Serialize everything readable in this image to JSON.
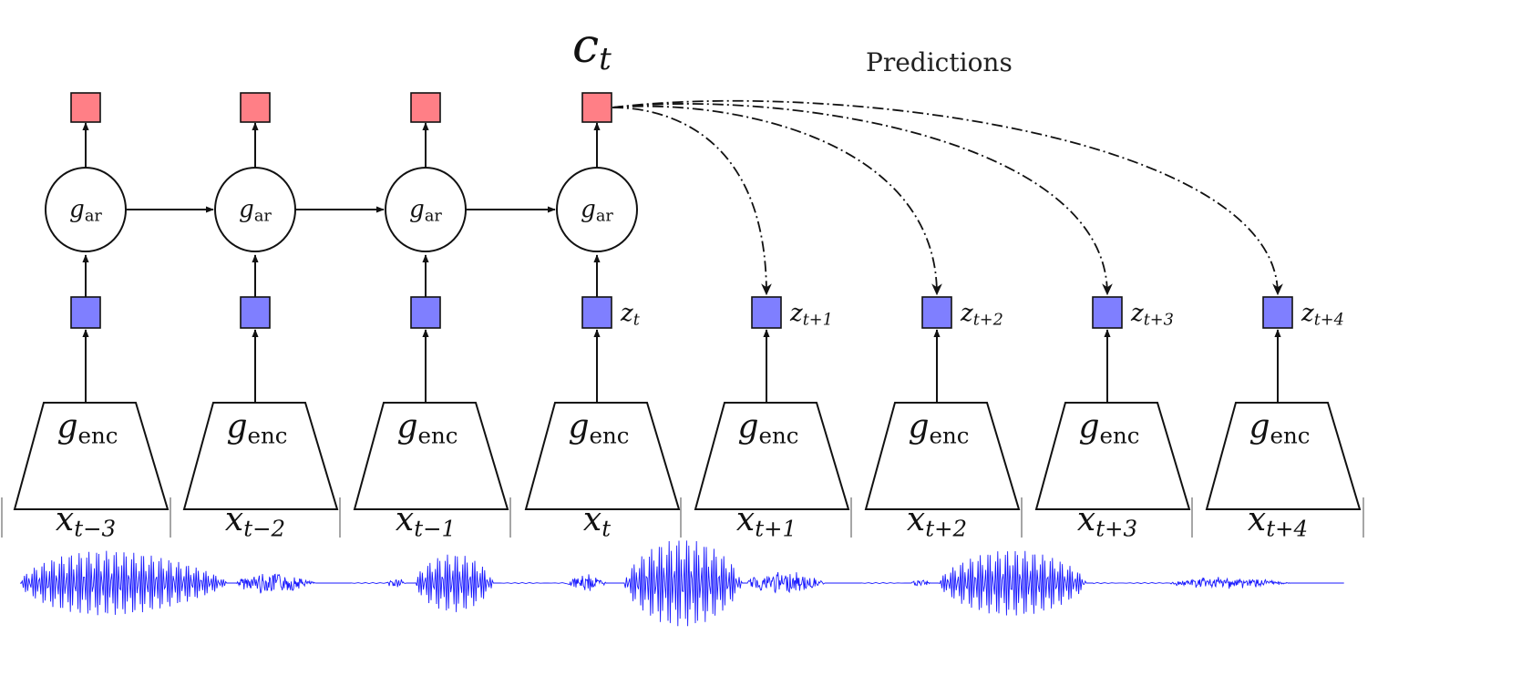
{
  "context_label": {
    "base": "c",
    "sub": "t"
  },
  "predictions_label": "Predictions",
  "ar_label": {
    "base": "g",
    "sub": "ar"
  },
  "enc_label": {
    "base": "g",
    "sub": "enc"
  },
  "columns": [
    {
      "x": {
        "base": "x",
        "sub": "t−3"
      },
      "z": null,
      "has_ar": true
    },
    {
      "x": {
        "base": "x",
        "sub": "t−2"
      },
      "z": null,
      "has_ar": true
    },
    {
      "x": {
        "base": "x",
        "sub": "t−1"
      },
      "z": null,
      "has_ar": true
    },
    {
      "x": {
        "base": "x",
        "sub": "t"
      },
      "z": {
        "base": "z",
        "sub": "t"
      },
      "has_ar": true
    },
    {
      "x": {
        "base": "x",
        "sub": "t+1"
      },
      "z": {
        "base": "z",
        "sub": "t+1"
      },
      "has_ar": false
    },
    {
      "x": {
        "base": "x",
        "sub": "t+2"
      },
      "z": {
        "base": "z",
        "sub": "t+2"
      },
      "has_ar": false
    },
    {
      "x": {
        "base": "x",
        "sub": "t+3"
      },
      "z": {
        "base": "z",
        "sub": "t+3"
      },
      "has_ar": false
    },
    {
      "x": {
        "base": "x",
        "sub": "t+4"
      },
      "z": {
        "base": "z",
        "sub": "t+4"
      },
      "has_ar": false
    }
  ],
  "colors": {
    "context": "#ff7f86",
    "latent": "#7f7fff",
    "waveform": "#1a1aff",
    "stroke": "#111111"
  }
}
